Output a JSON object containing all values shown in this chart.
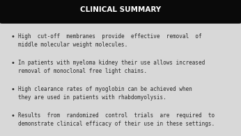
{
  "title": "CLINICAL SUMMARY",
  "title_bg_color": "#0a0a0a",
  "title_text_color": "#ffffff",
  "body_bg_color": "#d8d8d8",
  "border_color": "#555555",
  "bullet_color": "#2a2a2a",
  "text_color": "#2a2a2a",
  "bullets": [
    "High  cut-off  membranes  provide  effective  removal  of\nmiddle molecular weight molecules.",
    "In patients with myeloma kidney their use allows increased\nremoval of monoclonal free light chains.",
    "High clearance rates of myoglobin can be achieved when\nthey are used in patients with rhabdomyolysis.",
    "Results  from  randomized  control  trials  are  required  to\ndemonstrate clinical efficacy of their use in these settings."
  ],
  "figsize": [
    3.46,
    1.96
  ],
  "dpi": 100
}
